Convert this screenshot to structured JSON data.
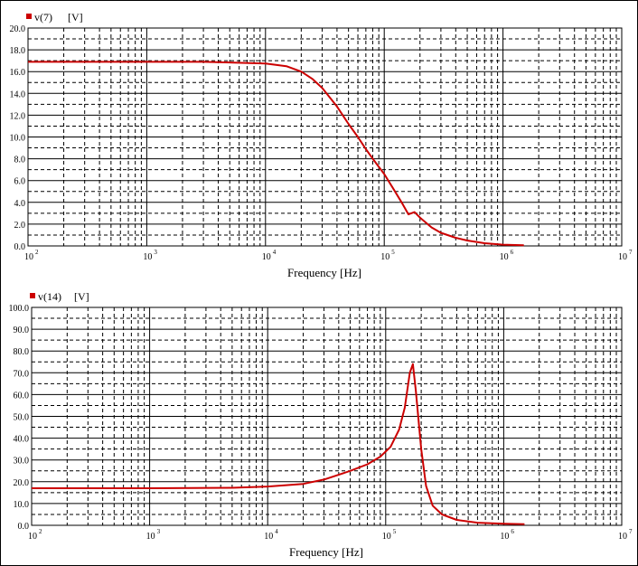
{
  "chart_data": [
    {
      "type": "line",
      "legend": {
        "marker_color": "#cc0000",
        "name": "v(7)",
        "unit": "[V]"
      },
      "xlabel": "Frequency [Hz]",
      "xscale": "log",
      "xlim": [
        100,
        10000000
      ],
      "x_ticks": [
        {
          "base": "10",
          "exp": "2"
        },
        {
          "base": "10",
          "exp": "3"
        },
        {
          "base": "10",
          "exp": "4"
        },
        {
          "base": "10",
          "exp": "5"
        },
        {
          "base": "10",
          "exp": "6"
        },
        {
          "base": "10",
          "exp": "7"
        }
      ],
      "ylim": [
        0,
        20
      ],
      "y_ticks": [
        "0.0",
        "2.0",
        "4.0",
        "6.0",
        "8.0",
        "10.0",
        "12.0",
        "14.0",
        "16.0",
        "18.0",
        "20.0"
      ],
      "y_tick_values": [
        0,
        2,
        4,
        6,
        8,
        10,
        12,
        14,
        16,
        18,
        20
      ],
      "grid": true,
      "series": [
        {
          "name": "v(7)",
          "color": "#cc0000",
          "x": [
            100,
            1000,
            3000,
            10000,
            15000,
            20000,
            25000,
            30000,
            40000,
            50000,
            60000,
            70000,
            80000,
            100000,
            120000,
            140000,
            160000,
            180000,
            200000,
            250000,
            300000,
            400000,
            500000,
            700000,
            1000000,
            1500000
          ],
          "y": [
            16.9,
            16.9,
            16.9,
            16.75,
            16.5,
            16.0,
            15.3,
            14.5,
            12.8,
            11.2,
            10.0,
            8.9,
            8.0,
            6.6,
            5.2,
            4.0,
            2.9,
            3.1,
            2.6,
            1.7,
            1.2,
            0.75,
            0.5,
            0.25,
            0.12,
            0.06
          ]
        }
      ]
    },
    {
      "type": "line",
      "legend": {
        "marker_color": "#cc0000",
        "name": "v(14)",
        "unit": "[V]"
      },
      "xlabel": "Frequency [Hz]",
      "xscale": "log",
      "xlim": [
        100,
        10000000
      ],
      "x_ticks": [
        {
          "base": "10",
          "exp": "2"
        },
        {
          "base": "10",
          "exp": "3"
        },
        {
          "base": "10",
          "exp": "4"
        },
        {
          "base": "10",
          "exp": "5"
        },
        {
          "base": "10",
          "exp": "6"
        },
        {
          "base": "10",
          "exp": "7"
        }
      ],
      "ylim": [
        0,
        100
      ],
      "y_ticks": [
        "0.0",
        "10.0",
        "20.0",
        "30.0",
        "40.0",
        "50.0",
        "60.0",
        "70.0",
        "80.0",
        "90.0",
        "100.0"
      ],
      "y_tick_values": [
        0,
        10,
        20,
        30,
        40,
        50,
        60,
        70,
        80,
        90,
        100
      ],
      "grid": true,
      "series": [
        {
          "name": "v(14)",
          "color": "#cc0000",
          "x": [
            100,
            1000,
            5000,
            10000,
            20000,
            30000,
            40000,
            50000,
            70000,
            90000,
            110000,
            130000,
            145000,
            160000,
            170000,
            180000,
            200000,
            220000,
            250000,
            300000,
            400000,
            600000,
            1000000,
            1500000
          ],
          "y": [
            17,
            17,
            17.2,
            17.8,
            19,
            21,
            23.2,
            25,
            28,
            31.5,
            36,
            44,
            54,
            70,
            74,
            62,
            35,
            18,
            9,
            5,
            2.5,
            1.2,
            0.7,
            0.5
          ]
        }
      ]
    }
  ]
}
